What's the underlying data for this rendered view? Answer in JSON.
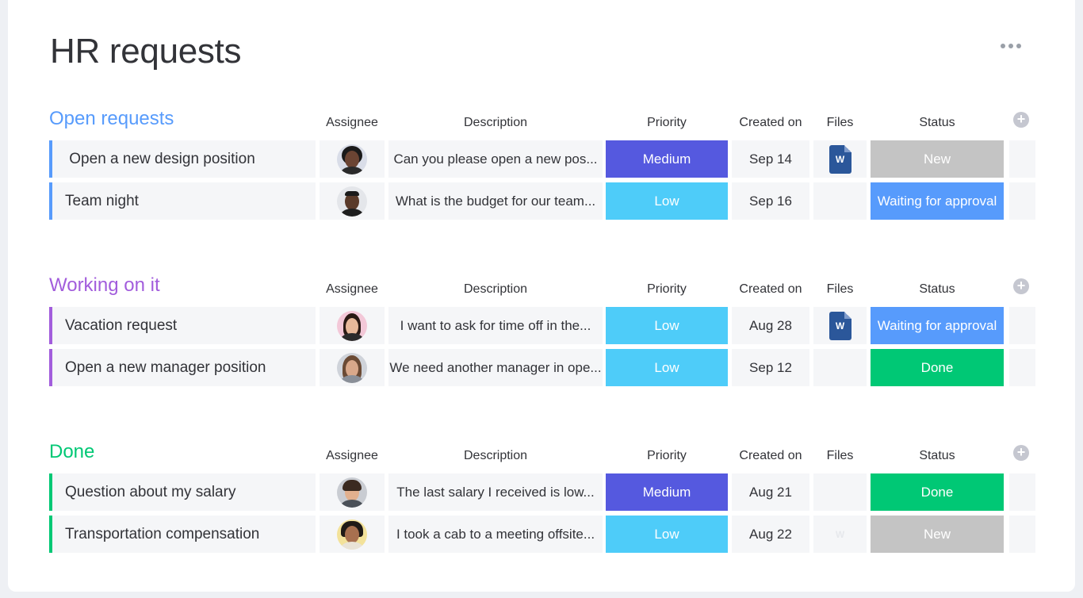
{
  "board": {
    "title": "HR requests"
  },
  "columns": {
    "assignee": "Assignee",
    "description": "Description",
    "priority": "Priority",
    "created_on": "Created on",
    "files": "Files",
    "status": "Status",
    "add": "+"
  },
  "colors": {
    "open": "#579bfc",
    "working": "#a25ddc",
    "done_group": "#00c875",
    "medium": "#5559df",
    "low": "#4eccf9",
    "new": "#c4c4c4",
    "waiting": "#579bfc",
    "done": "#00c875"
  },
  "groups": [
    {
      "title": "Open requests",
      "rows": [
        {
          "name": " Open a new design position",
          "assignee_icon": "avatar-icon",
          "description": "Can you please open a new pos...",
          "priority": "Medium",
          "created_on": "Sep 14",
          "file": "W",
          "status": "New"
        },
        {
          "name": "Team night",
          "assignee_icon": "avatar-icon",
          "description": "What is the budget for our team...",
          "priority": "Low",
          "created_on": "Sep 16",
          "file": "",
          "status": "Waiting for approval"
        }
      ]
    },
    {
      "title": "Working on it",
      "rows": [
        {
          "name": "Vacation request",
          "assignee_icon": "avatar-icon",
          "description": "I want to ask for time off in the...",
          "priority": "Low",
          "created_on": "Aug 28",
          "file": "W",
          "status": "Waiting for approval"
        },
        {
          "name": "Open a new manager position",
          "assignee_icon": "avatar-icon",
          "description": "We need another manager in ope...",
          "priority": "Low",
          "created_on": "Sep 12",
          "file": "",
          "status": "Done"
        }
      ]
    },
    {
      "title": "Done",
      "rows": [
        {
          "name": "Question about my salary",
          "assignee_icon": "avatar-icon",
          "description": "The last salary I received is low...",
          "priority": "Medium",
          "created_on": "Aug 21",
          "file": "",
          "status": "Done"
        },
        {
          "name": "Transportation compensation",
          "assignee_icon": "avatar-icon",
          "description": "I took a cab to a meeting offsite...",
          "priority": "Low",
          "created_on": "Aug 22",
          "file": "W",
          "status": "New"
        }
      ]
    }
  ]
}
